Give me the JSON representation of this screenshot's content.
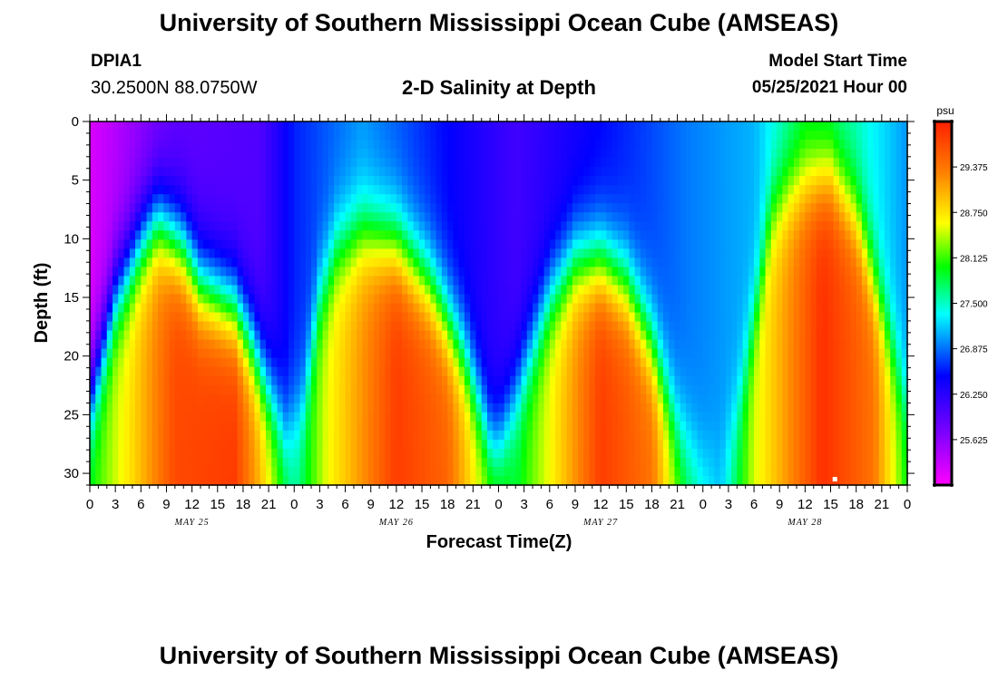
{
  "header": {
    "title": "University of Southern Mississippi Ocean Cube (AMSEAS)",
    "station_id": "DPIA1",
    "station_coords": "30.2500N  88.0750W",
    "subtitle": "2-D Salinity at Depth",
    "model_start_label": "Model Start Time",
    "model_start_value": "05/25/2021 Hour 00"
  },
  "footer": {
    "title": "University of Southern Mississippi Ocean Cube (AMSEAS)"
  },
  "chart_data": {
    "type": "heatmap",
    "title": "2-D Salinity at Depth",
    "xlabel": "Forecast Time(Z)",
    "ylabel": "Depth (ft)",
    "x_hours_range": [
      0,
      96
    ],
    "ylim": [
      0,
      31
    ],
    "y_ticks": [
      0,
      5,
      10,
      15,
      20,
      25,
      30
    ],
    "x_tick_labels": [
      "0",
      "3",
      "6",
      "9",
      "12",
      "15",
      "18",
      "21",
      "0",
      "3",
      "6",
      "9",
      "12",
      "15",
      "18",
      "21",
      "0",
      "3",
      "6",
      "9",
      "12",
      "15",
      "18",
      "21",
      "0",
      "3",
      "6",
      "9",
      "12",
      "15",
      "18",
      "21",
      "0"
    ],
    "day_labels": [
      {
        "label": "MAY 25",
        "hour": 12
      },
      {
        "label": "MAY 26",
        "hour": 36
      },
      {
        "label": "MAY 27",
        "hour": 60
      },
      {
        "label": "MAY 28",
        "hour": 84
      }
    ],
    "colorbar": {
      "unit": "psu",
      "min": 25.0,
      "max": 30.0,
      "tick_labels": [
        "25.625",
        "26.250",
        "26.875",
        "27.500",
        "28.125",
        "28.750",
        "29.375"
      ],
      "tick_values": [
        25.625,
        26.25,
        26.875,
        27.5,
        28.125,
        28.75,
        29.375
      ],
      "colors": [
        "#ff00ff",
        "#8000ff",
        "#0000ff",
        "#00ffff",
        "#00ff00",
        "#ffff00",
        "#ff8000",
        "#ff2000"
      ]
    },
    "pycnocline_depth_ft": [
      {
        "hour": 0,
        "depth": 24
      },
      {
        "hour": 3,
        "depth": 15
      },
      {
        "hour": 6,
        "depth": 10.5
      },
      {
        "hour": 8,
        "depth": 8.5
      },
      {
        "hour": 11,
        "depth": 11
      },
      {
        "hour": 13,
        "depth": 14
      },
      {
        "hour": 17,
        "depth": 16
      },
      {
        "hour": 19,
        "depth": 19
      },
      {
        "hour": 21,
        "depth": 23
      },
      {
        "hour": 23,
        "depth": 26.5
      },
      {
        "hour": 25,
        "depth": 24
      },
      {
        "hour": 27,
        "depth": 15
      },
      {
        "hour": 29,
        "depth": 11
      },
      {
        "hour": 32,
        "depth": 9.5
      },
      {
        "hour": 36,
        "depth": 10.5
      },
      {
        "hour": 40,
        "depth": 14
      },
      {
        "hour": 44,
        "depth": 20
      },
      {
        "hour": 47,
        "depth": 27
      },
      {
        "hour": 48,
        "depth": 27.5
      },
      {
        "hour": 51,
        "depth": 21
      },
      {
        "hour": 54,
        "depth": 15
      },
      {
        "hour": 57,
        "depth": 12
      },
      {
        "hour": 60,
        "depth": 12
      },
      {
        "hour": 63,
        "depth": 14
      },
      {
        "hour": 66,
        "depth": 19
      },
      {
        "hour": 69,
        "depth": 26
      },
      {
        "hour": 72,
        "depth": 29.5
      },
      {
        "hour": 74,
        "depth": 29
      },
      {
        "hour": 76,
        "depth": 25
      },
      {
        "hour": 78,
        "depth": 17
      },
      {
        "hour": 80,
        "depth": 8
      },
      {
        "hour": 82,
        "depth": 6
      },
      {
        "hour": 84,
        "depth": 5
      },
      {
        "hour": 87,
        "depth": 4.5
      },
      {
        "hour": 90,
        "depth": 8
      },
      {
        "hour": 93,
        "depth": 16
      },
      {
        "hour": 96,
        "depth": 24
      }
    ],
    "surface_salinity_psu": [
      {
        "hour": 0,
        "value": 25.2
      },
      {
        "hour": 10,
        "value": 25.9
      },
      {
        "hour": 20,
        "value": 26.0
      },
      {
        "hour": 24,
        "value": 26.6
      },
      {
        "hour": 32,
        "value": 27.0
      },
      {
        "hour": 42,
        "value": 26.5
      },
      {
        "hour": 50,
        "value": 26.1
      },
      {
        "hour": 60,
        "value": 26.5
      },
      {
        "hour": 70,
        "value": 26.9
      },
      {
        "hour": 78,
        "value": 27.1
      },
      {
        "hour": 84,
        "value": 27.8
      },
      {
        "hour": 90,
        "value": 27.5
      },
      {
        "hour": 96,
        "value": 27.0
      }
    ],
    "bottom_salinity_psu": [
      {
        "hour": 0,
        "value": 28.0
      },
      {
        "hour": 5,
        "value": 28.8
      },
      {
        "hour": 10,
        "value": 29.7
      },
      {
        "hour": 17,
        "value": 29.8
      },
      {
        "hour": 20,
        "value": 29.0
      },
      {
        "hour": 24,
        "value": 27.6
      },
      {
        "hour": 28,
        "value": 28.6
      },
      {
        "hour": 36,
        "value": 29.8
      },
      {
        "hour": 42,
        "value": 29.5
      },
      {
        "hour": 46,
        "value": 28.5
      },
      {
        "hour": 50,
        "value": 27.9
      },
      {
        "hour": 54,
        "value": 28.6
      },
      {
        "hour": 60,
        "value": 29.8
      },
      {
        "hour": 66,
        "value": 29.4
      },
      {
        "hour": 70,
        "value": 27.9
      },
      {
        "hour": 74,
        "value": 27.2
      },
      {
        "hour": 78,
        "value": 28.5
      },
      {
        "hour": 86,
        "value": 29.9
      },
      {
        "hour": 92,
        "value": 29.4
      },
      {
        "hour": 96,
        "value": 28.0
      }
    ],
    "annotations": [
      {
        "type": "white-marker",
        "hour": 87.5,
        "depth": 30.5
      }
    ]
  }
}
